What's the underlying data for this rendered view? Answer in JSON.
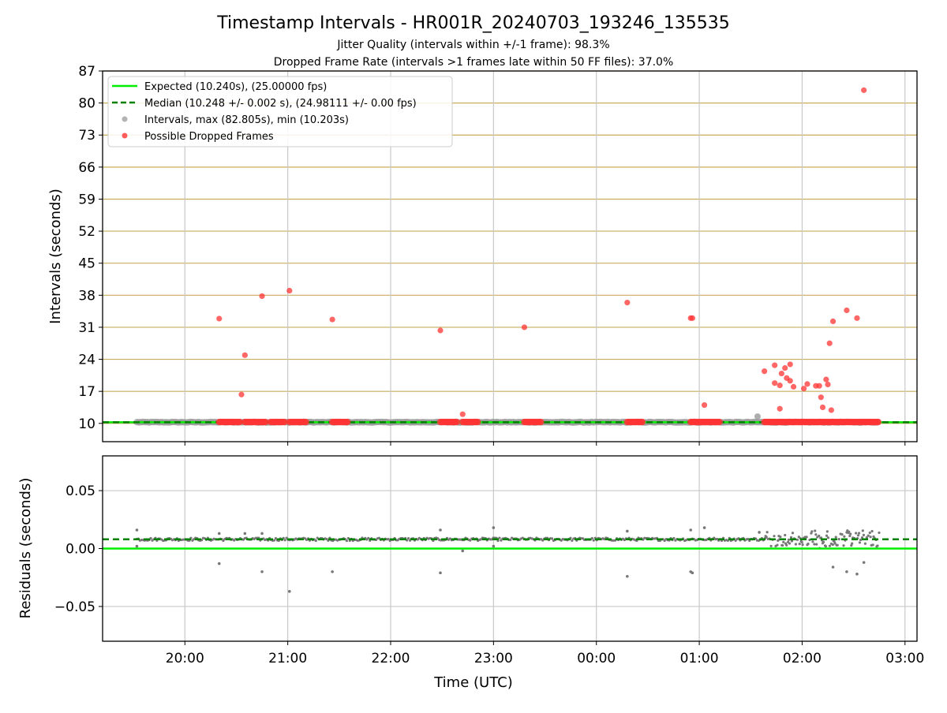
{
  "figure": {
    "title": "Timestamp Intervals - HR001R_20240703_193246_135535",
    "subtitle_1": "Jitter Quality (intervals within +/-1 frame): 98.3%",
    "subtitle_2": "Dropped Frame Rate (intervals >1 frames late within 50 FF files): 37.0%"
  },
  "colors": {
    "expected": "#00ee00",
    "median": "#008000",
    "intervals": "#999999",
    "dropped": "#ff3333",
    "hgrid": "#c8ad5a",
    "vgrid": "#c8c8c8",
    "residuals": "#777777"
  },
  "chart_data": [
    {
      "type": "scatter",
      "id": "intervals",
      "xlabel": "",
      "ylabel": "Intervals (seconds)",
      "xlim": [
        "19:12",
        "03:07"
      ],
      "ylim": [
        6,
        87
      ],
      "yticks": [
        10,
        17,
        24,
        31,
        38,
        45,
        52,
        59,
        66,
        73,
        80,
        87
      ],
      "xticks": [
        "20:00",
        "21:00",
        "22:00",
        "23:00",
        "00:00",
        "01:00",
        "02:00",
        "03:00"
      ],
      "grid": "horizontal and vertical",
      "legend_position": "upper-left",
      "lines": [
        {
          "name": "Expected (10.240s), (25.00000 fps)",
          "y": 10.24,
          "style": "solid"
        },
        {
          "name": "Median (10.248 +/- 0.002 s), (24.98111 +/- 0.00 fps)",
          "y": 10.248,
          "style": "dashed"
        }
      ],
      "series": [
        {
          "name": "Intervals, max (82.805s), min (10.203s)",
          "style": "grey-points",
          "baseline_y": 10.25,
          "x_start": "19:32",
          "x_end": "02:45",
          "points": [
            {
              "x": "01:34",
              "y": 11.5
            }
          ]
        },
        {
          "name": "Possible Dropped Frames",
          "style": "red-points",
          "clusters": [
            {
              "x_start": "20:20",
              "x_end": "20:32",
              "y": 10.3
            },
            {
              "x_start": "20:35",
              "x_end": "20:47",
              "y": 10.3
            },
            {
              "x_start": "20:50",
              "x_end": "20:58",
              "y": 10.3
            },
            {
              "x_start": "21:01",
              "x_end": "21:11",
              "y": 10.3
            },
            {
              "x_start": "21:26",
              "x_end": "21:35",
              "y": 10.3
            },
            {
              "x_start": "22:29",
              "x_end": "22:39",
              "y": 10.3
            },
            {
              "x_start": "22:42",
              "x_end": "22:51",
              "y": 10.3
            },
            {
              "x_start": "23:18",
              "x_end": "23:28",
              "y": 10.3
            },
            {
              "x_start": "00:18",
              "x_end": "00:27",
              "y": 10.3
            },
            {
              "x_start": "00:55",
              "x_end": "01:12",
              "y": 10.3
            },
            {
              "x_start": "01:38",
              "x_end": "02:45",
              "y": 10.3
            }
          ],
          "points": [
            {
              "x": "20:20",
              "y": 32.9
            },
            {
              "x": "20:33",
              "y": 16.3
            },
            {
              "x": "20:35",
              "y": 24.9
            },
            {
              "x": "20:45",
              "y": 37.8
            },
            {
              "x": "21:01",
              "y": 39.0
            },
            {
              "x": "21:26",
              "y": 32.7
            },
            {
              "x": "22:29",
              "y": 30.3
            },
            {
              "x": "22:42",
              "y": 12.0
            },
            {
              "x": "23:18",
              "y": 31.0
            },
            {
              "x": "00:18",
              "y": 36.4
            },
            {
              "x": "00:55",
              "y": 33.0
            },
            {
              "x": "00:56",
              "y": 33.0
            },
            {
              "x": "01:03",
              "y": 14.0
            },
            {
              "x": "01:38",
              "y": 21.4
            },
            {
              "x": "01:44",
              "y": 22.7
            },
            {
              "x": "01:44",
              "y": 18.8
            },
            {
              "x": "01:47",
              "y": 18.3
            },
            {
              "x": "01:47",
              "y": 13.2
            },
            {
              "x": "01:48",
              "y": 20.9
            },
            {
              "x": "01:50",
              "y": 22.1
            },
            {
              "x": "01:51",
              "y": 19.9
            },
            {
              "x": "01:53",
              "y": 22.9
            },
            {
              "x": "01:53",
              "y": 19.3
            },
            {
              "x": "01:55",
              "y": 18.0
            },
            {
              "x": "02:01",
              "y": 17.6
            },
            {
              "x": "02:03",
              "y": 18.6
            },
            {
              "x": "02:08",
              "y": 18.2
            },
            {
              "x": "02:10",
              "y": 18.2
            },
            {
              "x": "02:11",
              "y": 15.7
            },
            {
              "x": "02:12",
              "y": 13.5
            },
            {
              "x": "02:14",
              "y": 19.6
            },
            {
              "x": "02:15",
              "y": 18.5
            },
            {
              "x": "02:16",
              "y": 27.5
            },
            {
              "x": "02:17",
              "y": 12.9
            },
            {
              "x": "02:18",
              "y": 32.3
            },
            {
              "x": "02:26",
              "y": 34.7
            },
            {
              "x": "02:32",
              "y": 33.0
            },
            {
              "x": "02:36",
              "y": 82.8
            }
          ]
        }
      ]
    },
    {
      "type": "scatter",
      "id": "residuals",
      "xlabel": "Time (UTC)",
      "ylabel": "Residuals (seconds)",
      "xlim": [
        "19:12",
        "03:07"
      ],
      "ylim": [
        -0.08,
        0.08
      ],
      "yticks": [
        0.05,
        0.0,
        -0.05
      ],
      "ytick_labels": [
        "0.05",
        "0.00",
        "−0.05"
      ],
      "xticks": [
        "20:00",
        "21:00",
        "22:00",
        "23:00",
        "00:00",
        "01:00",
        "02:00",
        "03:00"
      ],
      "grid": "horizontal and vertical",
      "lines": [
        {
          "name": "Expected",
          "y": 0.0,
          "style": "solid"
        },
        {
          "name": "Median",
          "y": 0.008,
          "style": "dashed"
        }
      ],
      "series": [
        {
          "name": "Residuals",
          "baseline_y": 0.008,
          "x_start": "19:32",
          "x_end": "02:45",
          "points": [
            {
              "x": "20:20",
              "y": -0.013
            },
            {
              "x": "20:45",
              "y": -0.02
            },
            {
              "x": "21:01",
              "y": -0.037
            },
            {
              "x": "21:26",
              "y": -0.02
            },
            {
              "x": "22:29",
              "y": -0.021
            },
            {
              "x": "00:18",
              "y": -0.024
            },
            {
              "x": "00:55",
              "y": -0.02
            },
            {
              "x": "00:56",
              "y": -0.021
            },
            {
              "x": "02:18",
              "y": -0.016
            },
            {
              "x": "02:26",
              "y": -0.02
            },
            {
              "x": "02:32",
              "y": -0.022
            },
            {
              "x": "02:36",
              "y": -0.012
            },
            {
              "x": "19:32",
              "y": 0.016
            },
            {
              "x": "19:32",
              "y": 0.002
            },
            {
              "x": "20:20",
              "y": 0.013
            },
            {
              "x": "20:35",
              "y": 0.013
            },
            {
              "x": "20:45",
              "y": 0.013
            },
            {
              "x": "22:29",
              "y": 0.016
            },
            {
              "x": "22:42",
              "y": -0.002
            },
            {
              "x": "23:00",
              "y": 0.018
            },
            {
              "x": "23:00",
              "y": 0.002
            },
            {
              "x": "00:18",
              "y": 0.015
            },
            {
              "x": "00:55",
              "y": 0.016
            },
            {
              "x": "01:03",
              "y": 0.018
            },
            {
              "x": "01:35",
              "y": 0.014
            }
          ]
        }
      ]
    }
  ]
}
